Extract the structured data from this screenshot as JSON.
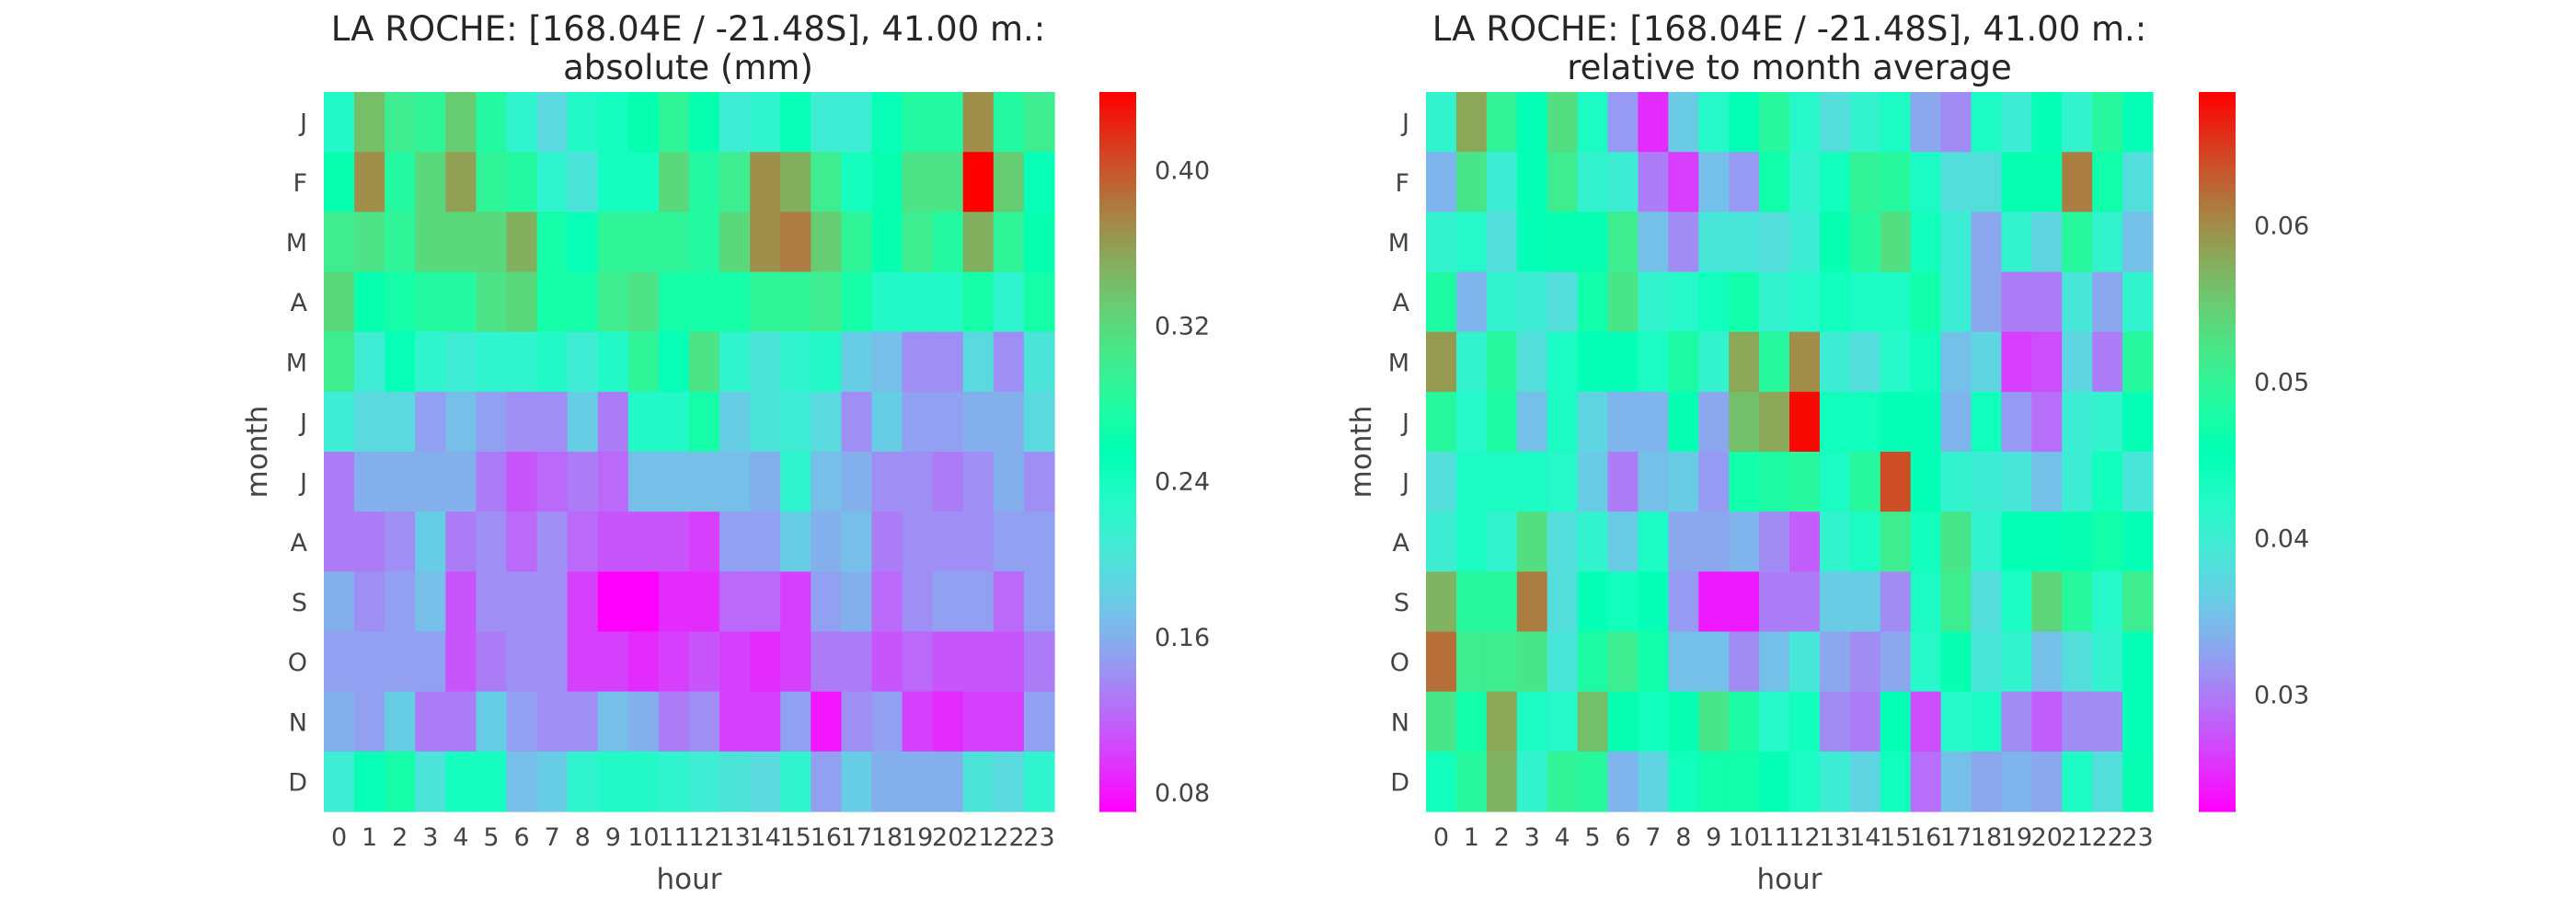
{
  "chart_data": [
    {
      "type": "heatmap",
      "title": "LA ROCHE: [168.04E / -21.48S], 41.00 m.:",
      "subtitle": "absolute (mm)",
      "xlabel": "hour",
      "ylabel": "month",
      "x": [
        "0",
        "1",
        "2",
        "3",
        "4",
        "5",
        "6",
        "7",
        "8",
        "9",
        "10",
        "11",
        "12",
        "13",
        "14",
        "15",
        "16",
        "17",
        "18",
        "19",
        "20",
        "21",
        "22",
        "23"
      ],
      "y": [
        "J",
        "F",
        "M",
        "A",
        "M",
        "J",
        "J",
        "A",
        "S",
        "O",
        "N",
        "D"
      ],
      "colormap": "rainbow",
      "vmin": 0.07,
      "vmax": 0.44,
      "colorbar_ticks": [
        "0.08",
        "0.16",
        "0.24",
        "0.32",
        "0.40"
      ],
      "values": [
        [
          0.23,
          0.34,
          0.3,
          0.29,
          0.33,
          0.28,
          0.22,
          0.19,
          0.23,
          0.24,
          0.26,
          0.29,
          0.26,
          0.21,
          0.22,
          0.25,
          0.21,
          0.21,
          0.25,
          0.28,
          0.28,
          0.37,
          0.28,
          0.3
        ],
        [
          0.26,
          0.37,
          0.28,
          0.32,
          0.36,
          0.29,
          0.28,
          0.22,
          0.2,
          0.24,
          0.24,
          0.32,
          0.28,
          0.3,
          0.37,
          0.35,
          0.3,
          0.24,
          0.26,
          0.31,
          0.31,
          0.44,
          0.33,
          0.25
        ],
        [
          0.3,
          0.31,
          0.29,
          0.32,
          0.32,
          0.32,
          0.35,
          0.27,
          0.25,
          0.29,
          0.29,
          0.29,
          0.28,
          0.32,
          0.37,
          0.38,
          0.33,
          0.29,
          0.26,
          0.3,
          0.28,
          0.35,
          0.29,
          0.26
        ],
        [
          0.32,
          0.26,
          0.27,
          0.28,
          0.28,
          0.31,
          0.32,
          0.27,
          0.27,
          0.3,
          0.31,
          0.27,
          0.27,
          0.27,
          0.29,
          0.29,
          0.3,
          0.27,
          0.23,
          0.23,
          0.23,
          0.27,
          0.22,
          0.27
        ],
        [
          0.3,
          0.21,
          0.25,
          0.22,
          0.21,
          0.22,
          0.22,
          0.23,
          0.21,
          0.23,
          0.29,
          0.25,
          0.31,
          0.22,
          0.2,
          0.22,
          0.23,
          0.18,
          0.17,
          0.14,
          0.14,
          0.19,
          0.14,
          0.2
        ],
        [
          0.21,
          0.19,
          0.19,
          0.15,
          0.17,
          0.15,
          0.14,
          0.14,
          0.18,
          0.13,
          0.23,
          0.23,
          0.27,
          0.18,
          0.2,
          0.21,
          0.19,
          0.14,
          0.18,
          0.15,
          0.15,
          0.16,
          0.16,
          0.19
        ],
        [
          0.13,
          0.16,
          0.16,
          0.16,
          0.16,
          0.13,
          0.11,
          0.12,
          0.13,
          0.12,
          0.17,
          0.17,
          0.17,
          0.17,
          0.16,
          0.22,
          0.17,
          0.16,
          0.14,
          0.14,
          0.13,
          0.14,
          0.16,
          0.14
        ],
        [
          0.13,
          0.13,
          0.14,
          0.18,
          0.13,
          0.14,
          0.12,
          0.14,
          0.12,
          0.11,
          0.11,
          0.11,
          0.1,
          0.15,
          0.15,
          0.18,
          0.16,
          0.17,
          0.13,
          0.14,
          0.14,
          0.14,
          0.15,
          0.15
        ],
        [
          0.16,
          0.14,
          0.15,
          0.17,
          0.11,
          0.14,
          0.14,
          0.14,
          0.1,
          0.07,
          0.07,
          0.09,
          0.09,
          0.12,
          0.12,
          0.1,
          0.15,
          0.16,
          0.12,
          0.14,
          0.15,
          0.15,
          0.12,
          0.15
        ],
        [
          0.15,
          0.15,
          0.15,
          0.15,
          0.11,
          0.13,
          0.14,
          0.14,
          0.1,
          0.1,
          0.09,
          0.1,
          0.11,
          0.1,
          0.09,
          0.1,
          0.13,
          0.13,
          0.11,
          0.12,
          0.11,
          0.11,
          0.11,
          0.13
        ],
        [
          0.16,
          0.15,
          0.18,
          0.13,
          0.13,
          0.18,
          0.15,
          0.14,
          0.14,
          0.17,
          0.16,
          0.13,
          0.14,
          0.1,
          0.1,
          0.15,
          0.08,
          0.14,
          0.15,
          0.1,
          0.09,
          0.1,
          0.1,
          0.15
        ],
        [
          0.21,
          0.25,
          0.27,
          0.2,
          0.24,
          0.24,
          0.17,
          0.18,
          0.22,
          0.23,
          0.23,
          0.22,
          0.21,
          0.2,
          0.19,
          0.22,
          0.15,
          0.18,
          0.16,
          0.16,
          0.16,
          0.2,
          0.19,
          0.22
        ]
      ]
    },
    {
      "type": "heatmap",
      "title": "LA ROCHE: [168.04E / -21.48S], 41.00 m.:",
      "subtitle": "relative to month average",
      "xlabel": "hour",
      "ylabel": "month",
      "x": [
        "0",
        "1",
        "2",
        "3",
        "4",
        "5",
        "6",
        "7",
        "8",
        "9",
        "10",
        "11",
        "12",
        "13",
        "14",
        "15",
        "16",
        "17",
        "18",
        "19",
        "20",
        "21",
        "22",
        "23"
      ],
      "y": [
        "J",
        "F",
        "M",
        "A",
        "M",
        "J",
        "J",
        "A",
        "S",
        "O",
        "N",
        "D"
      ],
      "colormap": "rainbow",
      "vmin": 0.0225,
      "vmax": 0.0685,
      "colorbar_ticks": [
        "0.03",
        "0.04",
        "0.05",
        "0.06"
      ],
      "values": [
        [
          0.041,
          0.058,
          0.05,
          0.045,
          0.053,
          0.043,
          0.032,
          0.025,
          0.036,
          0.042,
          0.045,
          0.049,
          0.042,
          0.038,
          0.041,
          0.043,
          0.033,
          0.031,
          0.043,
          0.04,
          0.045,
          0.041,
          0.049,
          0.045
        ],
        [
          0.034,
          0.052,
          0.04,
          0.045,
          0.051,
          0.041,
          0.04,
          0.03,
          0.026,
          0.035,
          0.032,
          0.047,
          0.041,
          0.044,
          0.05,
          0.049,
          0.043,
          0.038,
          0.038,
          0.046,
          0.046,
          0.061,
          0.047,
          0.038
        ],
        [
          0.041,
          0.042,
          0.038,
          0.045,
          0.046,
          0.046,
          0.051,
          0.035,
          0.031,
          0.039,
          0.039,
          0.038,
          0.04,
          0.046,
          0.049,
          0.053,
          0.044,
          0.04,
          0.033,
          0.041,
          0.037,
          0.049,
          0.041,
          0.035
        ],
        [
          0.048,
          0.034,
          0.041,
          0.04,
          0.038,
          0.047,
          0.052,
          0.041,
          0.042,
          0.044,
          0.047,
          0.041,
          0.042,
          0.044,
          0.043,
          0.043,
          0.047,
          0.04,
          0.033,
          0.03,
          0.03,
          0.039,
          0.033,
          0.041
        ],
        [
          0.059,
          0.041,
          0.049,
          0.038,
          0.043,
          0.045,
          0.045,
          0.043,
          0.048,
          0.041,
          0.058,
          0.049,
          0.06,
          0.04,
          0.038,
          0.042,
          0.044,
          0.035,
          0.037,
          0.026,
          0.027,
          0.037,
          0.03,
          0.049
        ],
        [
          0.049,
          0.042,
          0.048,
          0.035,
          0.043,
          0.037,
          0.034,
          0.034,
          0.046,
          0.033,
          0.056,
          0.058,
          0.068,
          0.044,
          0.044,
          0.045,
          0.045,
          0.034,
          0.044,
          0.032,
          0.029,
          0.04,
          0.041,
          0.045
        ],
        [
          0.038,
          0.043,
          0.043,
          0.043,
          0.042,
          0.036,
          0.03,
          0.035,
          0.036,
          0.032,
          0.047,
          0.048,
          0.049,
          0.043,
          0.049,
          0.064,
          0.045,
          0.041,
          0.04,
          0.039,
          0.035,
          0.04,
          0.044,
          0.039
        ],
        [
          0.04,
          0.043,
          0.041,
          0.053,
          0.038,
          0.041,
          0.036,
          0.043,
          0.033,
          0.033,
          0.034,
          0.031,
          0.028,
          0.041,
          0.043,
          0.051,
          0.044,
          0.052,
          0.041,
          0.045,
          0.045,
          0.046,
          0.047,
          0.045
        ],
        [
          0.057,
          0.049,
          0.049,
          0.061,
          0.038,
          0.045,
          0.044,
          0.045,
          0.032,
          0.024,
          0.024,
          0.03,
          0.03,
          0.036,
          0.036,
          0.031,
          0.043,
          0.051,
          0.038,
          0.043,
          0.054,
          0.049,
          0.042,
          0.051
        ],
        [
          0.062,
          0.051,
          0.051,
          0.052,
          0.039,
          0.048,
          0.051,
          0.047,
          0.035,
          0.035,
          0.031,
          0.035,
          0.039,
          0.033,
          0.031,
          0.033,
          0.042,
          0.046,
          0.039,
          0.041,
          0.035,
          0.038,
          0.041,
          0.045
        ],
        [
          0.052,
          0.047,
          0.058,
          0.043,
          0.042,
          0.056,
          0.046,
          0.044,
          0.046,
          0.052,
          0.048,
          0.042,
          0.044,
          0.031,
          0.03,
          0.045,
          0.027,
          0.042,
          0.043,
          0.031,
          0.028,
          0.031,
          0.031,
          0.045
        ],
        [
          0.044,
          0.049,
          0.057,
          0.041,
          0.05,
          0.049,
          0.034,
          0.037,
          0.044,
          0.047,
          0.047,
          0.045,
          0.043,
          0.04,
          0.037,
          0.044,
          0.029,
          0.035,
          0.033,
          0.034,
          0.033,
          0.043,
          0.038,
          0.046
        ]
      ]
    }
  ]
}
